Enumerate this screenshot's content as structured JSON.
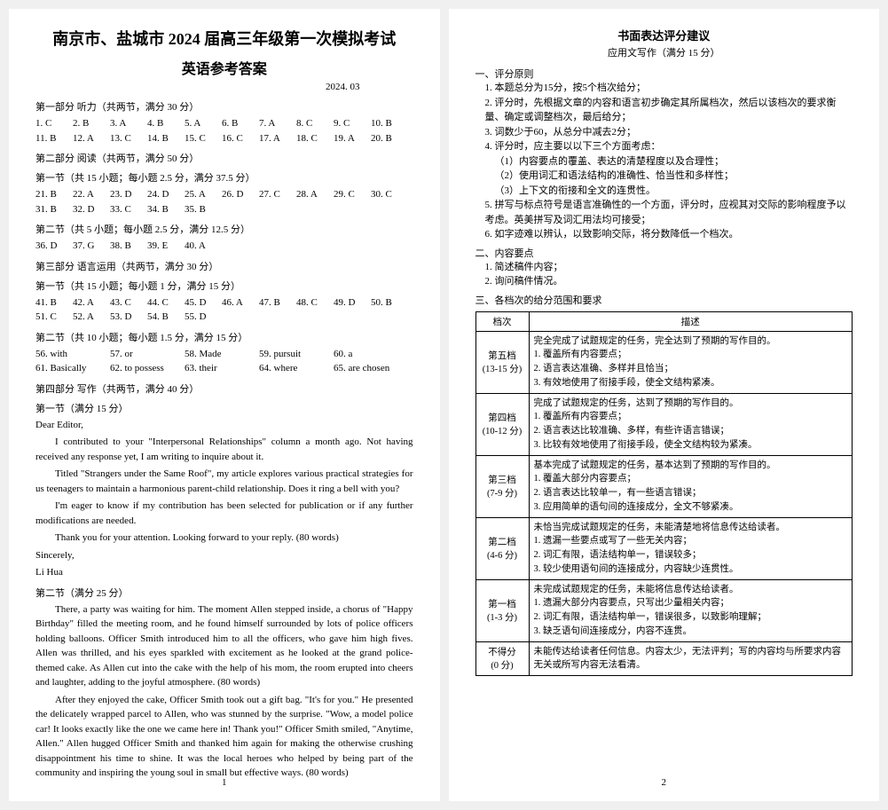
{
  "page1": {
    "main_title": "南京市、盐城市 2024 届高三年级第一次模拟考试",
    "sub_title": "英语参考答案",
    "date": "2024. 03",
    "part1_header": "第一部分 听力（共两节，满分 30 分）",
    "answers_1_10": [
      "1. C",
      "2. B",
      "3. A",
      "4. B",
      "5. A",
      "6. B",
      "7. A",
      "8. C",
      "9. C",
      "10. B"
    ],
    "answers_11_20": [
      "11. B",
      "12. A",
      "13. C",
      "14. B",
      "15. C",
      "16. C",
      "17. A",
      "18. C",
      "19. A",
      "20. B"
    ],
    "part2_header": "第二部分 阅读（共两节，满分 50 分）",
    "part2_sec1": "第一节（共 15 小题；每小题 2.5 分，满分 37.5 分）",
    "answers_21_30": [
      "21. B",
      "22. A",
      "23. D",
      "24. D",
      "25. A",
      "26. D",
      "27. C",
      "28. A",
      "29. C",
      "30. C"
    ],
    "answers_31_35": [
      "31. B",
      "32. D",
      "33. C",
      "34. B",
      "35. B"
    ],
    "part2_sec2": "第二节（共 5 小题；每小题 2.5 分，满分 12.5 分）",
    "answers_36_40": [
      "36. D",
      "37. G",
      "38. B",
      "39. E",
      "40. A"
    ],
    "part3_header": "第三部分 语言运用（共两节，满分 30 分）",
    "part3_sec1": "第一节（共 15 小题；每小题 1 分，满分 15 分）",
    "answers_41_50": [
      "41. B",
      "42. A",
      "43. C",
      "44. C",
      "45. D",
      "46. A",
      "47. B",
      "48. C",
      "49. D",
      "50. B"
    ],
    "answers_51_55": [
      "51. C",
      "52. A",
      "53. D",
      "54. B",
      "55. D"
    ],
    "part3_sec2": "第二节（共 10 小题；每小题 1.5 分，满分 15 分）",
    "fill_56": "56. with",
    "fill_57": "57. or",
    "fill_58": "58. Made",
    "fill_59": "59. pursuit",
    "fill_60": "60. a",
    "fill_61": "61. Basically",
    "fill_62": "62. to possess",
    "fill_63": "63. their",
    "fill_64": "64. where",
    "fill_65": "65. are chosen",
    "part4_header": "第四部分 写作（共两节，满分 40 分）",
    "part4_sec1": "第一节（满分 15 分）",
    "letter_salutation": "Dear Editor,",
    "letter_p1": "I contributed to your \"Interpersonal Relationships\" column a month ago. Not having received any response yet, I am writing to inquire about it.",
    "letter_p2": "Titled \"Strangers under the Same Roof\", my article explores various practical strategies for us teenagers to maintain a harmonious parent-child relationship. Does it ring a bell with you?",
    "letter_p3": "I'm eager to know if my contribution has been selected for publication or if any further modifications are needed.",
    "letter_p4": "Thank you for your attention. Looking forward to your reply. (80 words)",
    "letter_closing": "Sincerely,",
    "letter_sign": "Li Hua",
    "part4_sec2": "第二节（满分 25 分）",
    "story_p1": "There, a party was waiting for him. The moment Allen stepped inside, a chorus of \"Happy Birthday\" filled the meeting room, and he found himself surrounded by lots of police officers holding balloons. Officer Smith introduced him to all the officers, who gave him high fives. Allen was thrilled, and his eyes sparkled with excitement as he looked at the grand police-themed cake. As Allen cut into the cake with the help of his mom, the room erupted into cheers and laughter, adding to the joyful atmosphere. (80 words)",
    "story_p2": "After they enjoyed the cake, Officer Smith took out a gift bag. \"It's for you.\" He presented the delicately wrapped parcel to Allen, who was stunned by the surprise. \"Wow, a model police car! It looks exactly like the one we came here in! Thank you!\" Officer Smith smiled, \"Anytime, Allen.\" Allen hugged Officer Smith and thanked him again for making the otherwise crushing disappointment his time to shine. It was the local heroes who helped by being part of the community and inspiring the young soul in small but effective ways. (80 words)",
    "page_num": "1"
  },
  "page2": {
    "rubric_title": "书面表达评分建议",
    "rubric_sub": "应用文写作（满分 15 分）",
    "sec1": "一、评分原则",
    "sec1_items": [
      "1. 本题总分为15分，按5个档次给分；",
      "2. 评分时，先根据文章的内容和语言初步确定其所属档次，然后以该档次的要求衡量、确定或调整档次，最后给分；",
      "3. 词数少于60，从总分中减去2分；",
      "4. 评分时，应主要以以下三个方面考虑："
    ],
    "sec1_sub4": [
      "（1）内容要点的覆盖、表达的清楚程度以及合理性；",
      "（2）使用词汇和语法结构的准确性、恰当性和多样性；",
      "（3）上下文的衔接和全文的连贯性。"
    ],
    "sec1_item5": "5. 拼写与标点符号是语言准确性的一个方面，评分时，应视其对交际的影响程度予以考虑。英美拼写及词汇用法均可接受；",
    "sec1_item6": "6. 如字迹难以辨认，以致影响交际，将分数降低一个档次。",
    "sec2": "二、内容要点",
    "sec2_items": [
      "1. 简述稿件内容；",
      "2. 询问稿件情况。"
    ],
    "sec3": "三、各档次的给分范围和要求",
    "table_headers": [
      "档次",
      "描述"
    ],
    "bands": [
      {
        "name": "第五档",
        "range": "(13-15 分)",
        "desc": [
          "完全完成了试题规定的任务，完全达到了预期的写作目的。",
          "1. 覆盖所有内容要点；",
          "2. 语言表达准确、多样并且恰当；",
          "3. 有效地使用了衔接手段，使全文结构紧凑。"
        ]
      },
      {
        "name": "第四档",
        "range": "(10-12 分)",
        "desc": [
          "完成了试题规定的任务，达到了预期的写作目的。",
          "1. 覆盖所有内容要点；",
          "2. 语言表达比较准确、多样，有些许语言错误；",
          "3. 比较有效地使用了衔接手段，使全文结构较为紧凑。"
        ]
      },
      {
        "name": "第三档",
        "range": "(7-9 分)",
        "desc": [
          "基本完成了试题规定的任务，基本达到了预期的写作目的。",
          "1. 覆盖大部分内容要点；",
          "2. 语言表达比较单一，有一些语言错误；",
          "3. 应用简单的语句间的连接成分，全文不够紧凑。"
        ]
      },
      {
        "name": "第二档",
        "range": "(4-6 分)",
        "desc": [
          "未恰当完成试题规定的任务，未能清楚地将信息传达给读者。",
          "1. 遗漏一些要点或写了一些无关内容；",
          "2. 词汇有限，语法结构单一，错误较多；",
          "3. 较少使用语句间的连接成分，内容缺少连贯性。"
        ]
      },
      {
        "name": "第一档",
        "range": "(1-3 分)",
        "desc": [
          "未完成试题规定的任务，未能将信息传达给读者。",
          "1. 遗漏大部分内容要点，只写出少量相关内容；",
          "2. 词汇有限，语法结构单一，错误很多，以致影响理解；",
          "3. 缺乏语句间连接成分，内容不连贯。"
        ]
      },
      {
        "name": "不得分",
        "range": "(0 分)",
        "desc": [
          "未能传达给读者任何信息。内容太少，无法评判；写的内容均与所要求内容无关或所写内容无法看清。"
        ]
      }
    ],
    "page_num": "2"
  }
}
